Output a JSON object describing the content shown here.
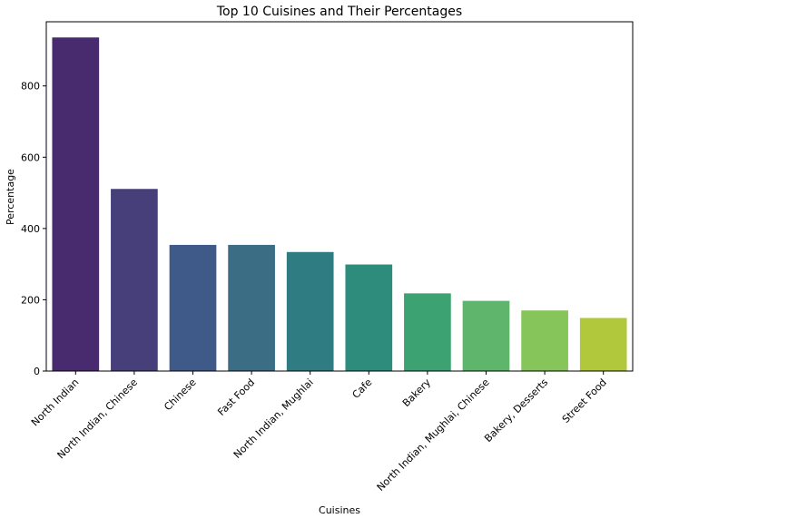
{
  "chart_data": {
    "type": "bar",
    "title": "Top 10 Cuisines and Their Percentages",
    "xlabel": "Cuisines",
    "ylabel": "Percentage",
    "categories": [
      "North Indian",
      "North Indian, Chinese",
      "Chinese",
      "Fast Food",
      "North Indian, Mughlai",
      "Cafe",
      "Bakery",
      "North Indian, Mughlai, Chinese",
      "Bakery, Desserts",
      "Street Food"
    ],
    "values": [
      936,
      511,
      354,
      354,
      334,
      299,
      218,
      197,
      170,
      149
    ],
    "colors": [
      "#482a6e",
      "#463f7a",
      "#3f5a88",
      "#3b6d85",
      "#2f7c82",
      "#2d8c7c",
      "#3ca272",
      "#5fb56c",
      "#86c55a",
      "#b2c83c"
    ],
    "ylim": [
      0,
      980
    ],
    "yticks": [
      0,
      200,
      400,
      600,
      800
    ],
    "grid": false,
    "legend": "none"
  }
}
